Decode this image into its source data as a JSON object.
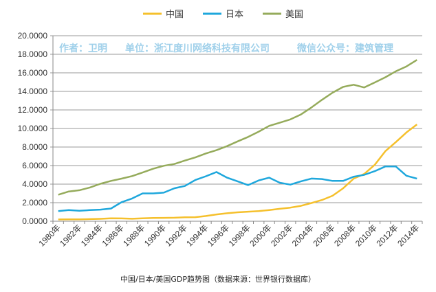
{
  "chart_data": {
    "type": "line",
    "title": "",
    "xlabel": "",
    "ylabel": "",
    "ylim": [
      0,
      20
    ],
    "yticks": [
      "0.0000",
      "2.0000",
      "4.0000",
      "6.0000",
      "8.0000",
      "10.0000",
      "12.0000",
      "14.0000",
      "16.0000",
      "18.0000",
      "20.0000"
    ],
    "grid": true,
    "legend": "top",
    "x": [
      1980,
      1981,
      1982,
      1983,
      1984,
      1985,
      1986,
      1987,
      1988,
      1989,
      1990,
      1991,
      1992,
      1993,
      1994,
      1995,
      1996,
      1997,
      1998,
      1999,
      2000,
      2001,
      2002,
      2003,
      2004,
      2005,
      2006,
      2007,
      2008,
      2009,
      2010,
      2011,
      2012,
      2013,
      2014
    ],
    "xtick_labels": [
      "1980年",
      "1982年",
      "1984年",
      "1986年",
      "1988年",
      "1990年",
      "1992年",
      "1994年",
      "1996年",
      "1998年",
      "2000年",
      "2002年",
      "2004年",
      "2006年",
      "2008年",
      "2010年",
      "2012年",
      "2014年"
    ],
    "series": [
      {
        "name": "中国",
        "color": "#f5c02c",
        "values": [
          0.19,
          0.2,
          0.21,
          0.23,
          0.26,
          0.31,
          0.3,
          0.27,
          0.31,
          0.35,
          0.36,
          0.38,
          0.43,
          0.44,
          0.56,
          0.73,
          0.86,
          0.96,
          1.03,
          1.09,
          1.21,
          1.34,
          1.47,
          1.66,
          1.96,
          2.29,
          2.75,
          3.55,
          4.59,
          5.1,
          6.09,
          7.55,
          8.53,
          9.57,
          10.44
        ]
      },
      {
        "name": "日本",
        "color": "#1ea7dc",
        "values": [
          1.09,
          1.2,
          1.13,
          1.2,
          1.25,
          1.37,
          2.05,
          2.45,
          3.0,
          3.0,
          3.08,
          3.55,
          3.8,
          4.45,
          4.85,
          5.3,
          4.7,
          4.3,
          3.9,
          4.4,
          4.7,
          4.15,
          3.95,
          4.3,
          4.6,
          4.55,
          4.35,
          4.35,
          4.8,
          5.0,
          5.4,
          5.9,
          5.9,
          4.9,
          4.6
        ]
      },
      {
        "name": "美国",
        "color": "#95ab5b",
        "values": [
          2.86,
          3.21,
          3.34,
          3.64,
          4.04,
          4.35,
          4.59,
          4.87,
          5.25,
          5.66,
          5.98,
          6.17,
          6.54,
          6.88,
          7.31,
          7.66,
          8.1,
          8.61,
          9.09,
          9.66,
          10.28,
          10.62,
          10.98,
          11.51,
          12.27,
          13.09,
          13.86,
          14.48,
          14.72,
          14.42,
          14.96,
          15.52,
          16.16,
          16.69,
          17.39
        ]
      }
    ],
    "watermark": [
      "作者：卫明",
      "单位：浙江度川网络科技有限公司",
      "微信公众号：建筑管理"
    ]
  },
  "caption": "中国/日本/美国GDP趋势图（数据来源：世界银行数据库）"
}
